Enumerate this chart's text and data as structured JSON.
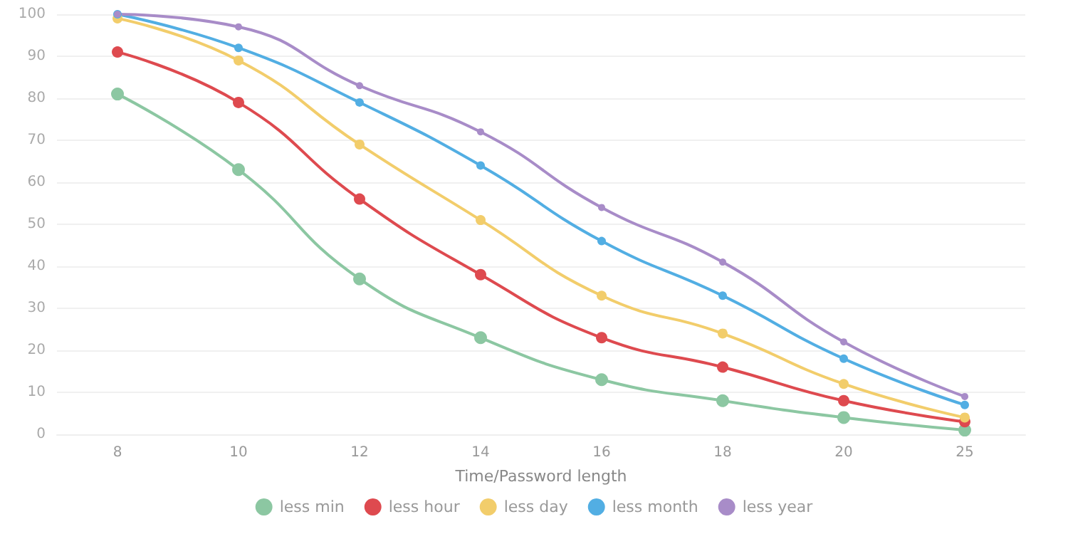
{
  "chart_data": {
    "type": "line",
    "xlabel": "Time/Password length",
    "categories": [
      "8",
      "10",
      "12",
      "14",
      "16",
      "18",
      "20",
      "25"
    ],
    "series": [
      {
        "name": "less min",
        "color": "#8cc7a2",
        "values": [
          81,
          63,
          37,
          23,
          13,
          8,
          4,
          1
        ]
      },
      {
        "name": "less hour",
        "color": "#de4a4f",
        "values": [
          91,
          79,
          56,
          38,
          23,
          16,
          8,
          3
        ]
      },
      {
        "name": "less day",
        "color": "#f2cd6b",
        "values": [
          99,
          89,
          69,
          51,
          33,
          24,
          12,
          4
        ]
      },
      {
        "name": "less month",
        "color": "#52aee3",
        "values": [
          100,
          92,
          79,
          64,
          46,
          33,
          18,
          7
        ]
      },
      {
        "name": "less year",
        "color": "#a88cc8",
        "values": [
          100,
          97,
          83,
          72,
          54,
          41,
          22,
          9
        ]
      }
    ],
    "ylim": [
      0,
      100
    ],
    "yticks": [
      0,
      10,
      20,
      30,
      40,
      50,
      60,
      70,
      80,
      90,
      100
    ],
    "grid": "y",
    "legend": "bottom",
    "marker": "circle",
    "line_style": "solid"
  }
}
